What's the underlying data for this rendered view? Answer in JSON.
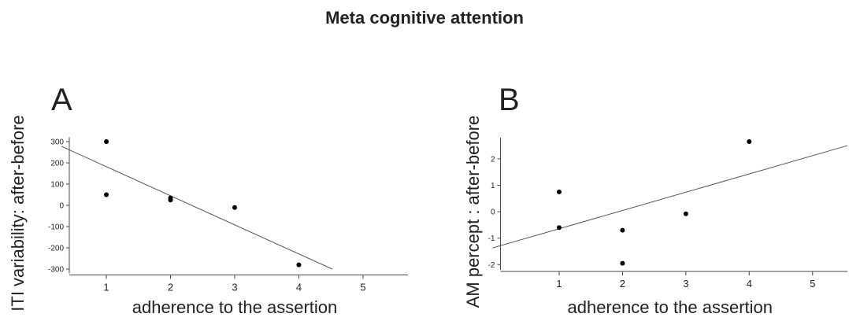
{
  "title": "Meta cognitive attention",
  "chart_data": [
    {
      "type": "scatter",
      "panel_label": "A",
      "x_label": "adherence to the assertion",
      "y_label": "ITI variability: after-before",
      "x": [
        1,
        1,
        2,
        2,
        3,
        4
      ],
      "values": [
        300,
        50,
        35,
        25,
        -10,
        -280
      ],
      "trend": {
        "x": [
          0.3,
          4.52
        ],
        "y": [
          278,
          -300
        ]
      },
      "xlim": [
        0.3,
        5.7
      ],
      "xticks": [
        1,
        2,
        3,
        4,
        5
      ],
      "ylim": [
        -320,
        320
      ],
      "yticks": [
        -300,
        -200,
        -100,
        0,
        100,
        200,
        300
      ],
      "color": "#000000",
      "trend_color": "#555555"
    },
    {
      "type": "scatter",
      "panel_label": "B",
      "x_label": "adherence to the assertion",
      "y_label": "AM percept : after-before",
      "x": [
        1,
        1,
        2,
        2,
        3,
        4
      ],
      "values": [
        0.75,
        -0.6,
        -0.7,
        -1.95,
        -0.08,
        2.65
      ],
      "trend": {
        "x": [
          -0.05,
          5.55
        ],
        "y": [
          -1.37,
          2.5
        ]
      },
      "xlim": [
        -0.05,
        5.55
      ],
      "xticks": [
        1,
        2,
        3,
        4,
        5
      ],
      "ylim": [
        -2.2,
        2.8
      ],
      "yticks": [
        -2,
        -1,
        0,
        1,
        2
      ],
      "color": "#000000",
      "trend_color": "#555555"
    }
  ]
}
